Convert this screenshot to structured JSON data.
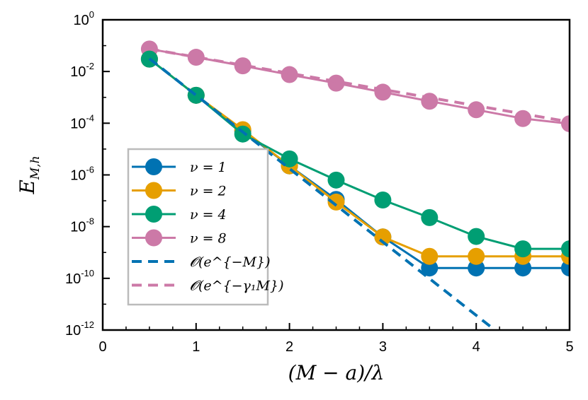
{
  "chart_data": {
    "type": "line",
    "xlabel": "(M − a)/λ",
    "ylabel_base": "E",
    "ylabel_sub": "M,h",
    "xlim": [
      0,
      5
    ],
    "ylim_log10": [
      -12,
      0
    ],
    "yscale": "log",
    "x_ticks": [
      "0",
      "1",
      "2",
      "3",
      "4",
      "5"
    ],
    "y_ticks": [
      {
        "base": "10",
        "exp": "0"
      },
      {
        "base": "10",
        "exp": "-2"
      },
      {
        "base": "10",
        "exp": "-4"
      },
      {
        "base": "10",
        "exp": "-6"
      },
      {
        "base": "10",
        "exp": "-8"
      },
      {
        "base": "10",
        "exp": "-10"
      },
      {
        "base": "10",
        "exp": "-12"
      }
    ],
    "grid": false,
    "legend_position": "left",
    "series": [
      {
        "name": "ν = 1",
        "color": "#0072b2",
        "marker": "circle",
        "x": [
          0.5,
          1,
          1.5,
          2,
          2.5,
          3,
          3.5,
          4,
          4.5,
          5
        ],
        "log10_y": [
          -1.52,
          -2.92,
          -4.3,
          -5.65,
          -6.95,
          -8.4,
          -9.6,
          -9.6,
          -9.6,
          -9.6
        ]
      },
      {
        "name": "ν = 2",
        "color": "#e69f00",
        "marker": "circle",
        "x": [
          0.5,
          1,
          1.5,
          2,
          2.5,
          3,
          3.5,
          4,
          4.5,
          5
        ],
        "log10_y": [
          -1.52,
          -2.92,
          -4.25,
          -5.65,
          -7.05,
          -8.4,
          -9.15,
          -9.15,
          -9.15,
          -9.15
        ]
      },
      {
        "name": "ν = 4",
        "color": "#009e73",
        "marker": "circle",
        "x": [
          0.5,
          1,
          1.5,
          2,
          2.5,
          3,
          3.5,
          4,
          4.5,
          5
        ],
        "log10_y": [
          -1.52,
          -2.92,
          -4.42,
          -5.38,
          -6.2,
          -6.97,
          -7.65,
          -8.38,
          -8.86,
          -8.86
        ]
      },
      {
        "name": "ν = 8",
        "color": "#cc79a7",
        "marker": "circle",
        "x": [
          0.5,
          1,
          1.5,
          2,
          2.5,
          3,
          3.5,
          4,
          4.5,
          5
        ],
        "log10_y": [
          -1.13,
          -1.45,
          -1.78,
          -2.12,
          -2.45,
          -2.8,
          -3.15,
          -3.48,
          -3.82,
          -4.02
        ]
      },
      {
        "name": "O(e^{-M})",
        "color": "#0072b2",
        "style": "dashed",
        "x": [
          0.5,
          4.2
        ],
        "log10_y": [
          -1.5,
          -12.0
        ]
      },
      {
        "name": "O(e^{-γ1 M})",
        "color": "#cc79a7",
        "style": "dashed",
        "x": [
          0.5,
          5
        ],
        "log10_y": [
          -1.13,
          -3.95
        ]
      }
    ],
    "legend": [
      {
        "label": "ν = 1",
        "color": "#0072b2",
        "style": "marker"
      },
      {
        "label": "ν = 2",
        "color": "#e69f00",
        "style": "marker"
      },
      {
        "label": "ν = 4",
        "color": "#009e73",
        "style": "marker"
      },
      {
        "label": "ν = 8",
        "color": "#cc79a7",
        "style": "marker"
      },
      {
        "label": "𝓞(e^{−M})",
        "color": "#0072b2",
        "style": "dashed"
      },
      {
        "label": "𝓞(e^{−γ₁M})",
        "color": "#cc79a7",
        "style": "dashed"
      }
    ]
  }
}
